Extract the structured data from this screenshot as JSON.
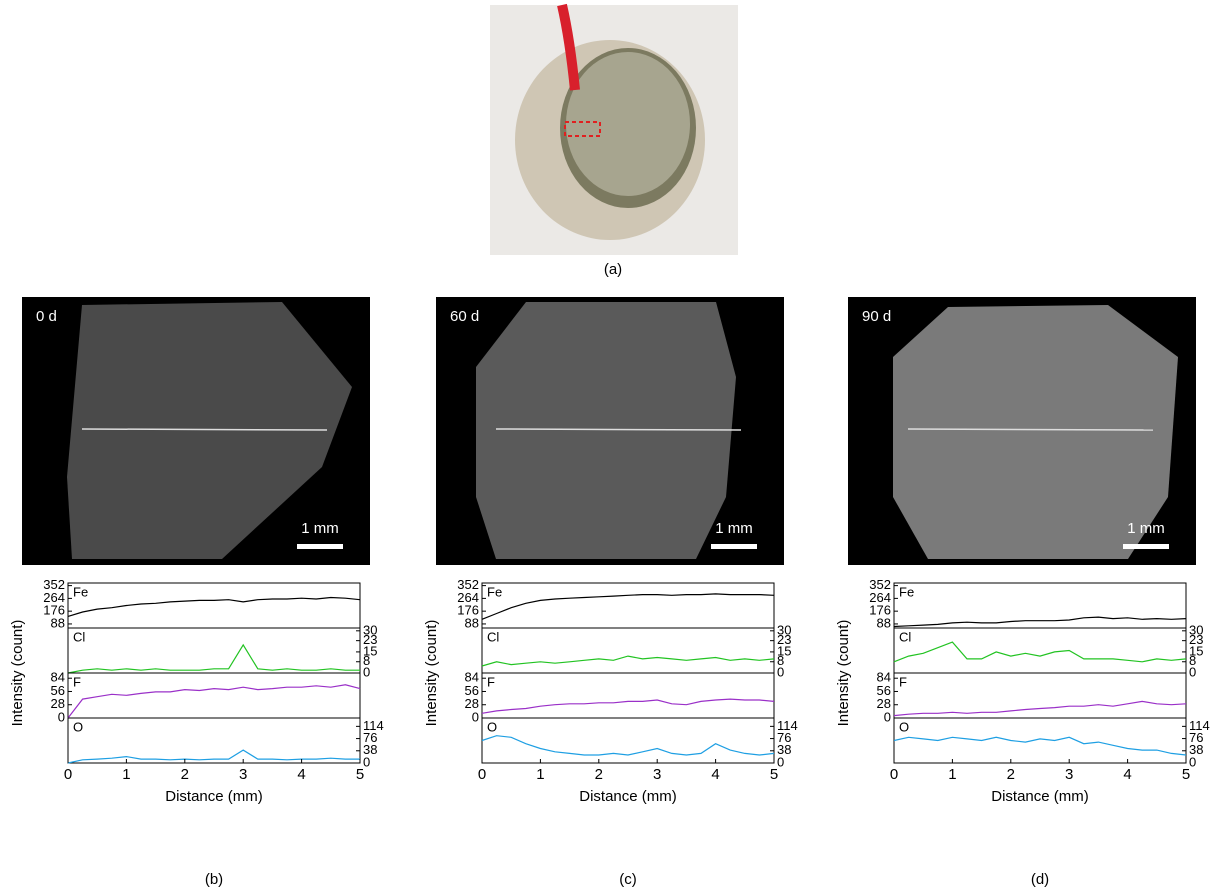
{
  "photo": {
    "label": "(a)"
  },
  "chart_data": [
    {
      "type": "stacked-line",
      "panel_label": "(b)",
      "image_label": "0 d",
      "scale_label": "1 mm",
      "xlabel": "Distance (mm)",
      "ylabel": "Intensity (count)",
      "x": [
        0,
        0.25,
        0.5,
        0.75,
        1,
        1.25,
        1.5,
        1.75,
        2,
        2.25,
        2.5,
        2.75,
        3,
        3.25,
        3.5,
        3.75,
        4,
        4.25,
        4.5,
        4.75,
        5
      ],
      "xlim": [
        0,
        5
      ],
      "xticks": [
        0,
        1,
        2,
        3,
        4,
        5
      ],
      "series": [
        {
          "name": "Fe",
          "color": "#000000",
          "side": "left",
          "ylim": [
            60,
            370
          ],
          "yticks": [
            88,
            176,
            264,
            352
          ],
          "values": [
            140,
            170,
            190,
            200,
            215,
            225,
            230,
            240,
            245,
            250,
            250,
            255,
            240,
            255,
            260,
            260,
            265,
            260,
            270,
            265,
            255
          ]
        },
        {
          "name": "Cl",
          "color": "#22c322",
          "side": "right",
          "ylim": [
            0,
            32
          ],
          "yticks": [
            0,
            8,
            15,
            23,
            30
          ],
          "values": [
            0,
            2,
            3,
            2,
            3,
            2,
            3,
            2,
            2,
            2,
            3,
            3,
            20,
            3,
            2,
            3,
            2,
            2,
            3,
            2,
            2
          ]
        },
        {
          "name": "F",
          "color": "#9a30c8",
          "side": "left",
          "ylim": [
            0,
            95
          ],
          "yticks": [
            0,
            28,
            56,
            84
          ],
          "values": [
            0,
            40,
            45,
            50,
            48,
            52,
            55,
            55,
            60,
            58,
            62,
            60,
            65,
            60,
            62,
            65,
            65,
            68,
            65,
            70,
            62
          ]
        },
        {
          "name": "O",
          "color": "#1e9fe3",
          "side": "right",
          "ylim": [
            0,
            140
          ],
          "yticks": [
            0,
            38,
            76,
            114
          ],
          "values": [
            0,
            10,
            12,
            15,
            20,
            12,
            12,
            10,
            12,
            10,
            12,
            12,
            40,
            12,
            12,
            10,
            12,
            12,
            15,
            12,
            12
          ]
        }
      ]
    },
    {
      "type": "stacked-line",
      "panel_label": "(c)",
      "image_label": "60 d",
      "scale_label": "1 mm",
      "xlabel": "Distance (mm)",
      "ylabel": "Intensity (count)",
      "x": [
        0,
        0.25,
        0.5,
        0.75,
        1,
        1.25,
        1.5,
        1.75,
        2,
        2.25,
        2.5,
        2.75,
        3,
        3.25,
        3.5,
        3.75,
        4,
        4.25,
        4.5,
        4.75,
        5
      ],
      "xlim": [
        0,
        5
      ],
      "xticks": [
        0,
        1,
        2,
        3,
        4,
        5
      ],
      "series": [
        {
          "name": "Fe",
          "color": "#000000",
          "side": "left",
          "ylim": [
            60,
            370
          ],
          "yticks": [
            88,
            176,
            264,
            352
          ],
          "values": [
            120,
            160,
            200,
            230,
            250,
            260,
            265,
            270,
            275,
            280,
            285,
            290,
            290,
            285,
            290,
            290,
            295,
            290,
            290,
            290,
            285
          ]
        },
        {
          "name": "Cl",
          "color": "#22c322",
          "side": "right",
          "ylim": [
            0,
            32
          ],
          "yticks": [
            0,
            8,
            15,
            23,
            30
          ],
          "values": [
            5,
            8,
            6,
            7,
            8,
            7,
            8,
            9,
            10,
            9,
            12,
            10,
            11,
            10,
            9,
            10,
            11,
            9,
            10,
            9,
            10
          ]
        },
        {
          "name": "F",
          "color": "#9a30c8",
          "side": "left",
          "ylim": [
            0,
            95
          ],
          "yticks": [
            0,
            28,
            56,
            84
          ],
          "values": [
            10,
            15,
            18,
            20,
            25,
            28,
            30,
            30,
            32,
            32,
            35,
            35,
            38,
            30,
            28,
            35,
            38,
            40,
            38,
            38,
            35
          ]
        },
        {
          "name": "O",
          "color": "#1e9fe3",
          "side": "right",
          "ylim": [
            0,
            140
          ],
          "yticks": [
            0,
            38,
            76,
            114
          ],
          "values": [
            70,
            85,
            80,
            60,
            45,
            35,
            30,
            25,
            25,
            30,
            25,
            35,
            45,
            30,
            25,
            30,
            60,
            40,
            30,
            25,
            30
          ]
        }
      ]
    },
    {
      "type": "stacked-line",
      "panel_label": "(d)",
      "image_label": "90 d",
      "scale_label": "1 mm",
      "xlabel": "Distance (mm)",
      "ylabel": "Intensity (count)",
      "x": [
        0,
        0.25,
        0.5,
        0.75,
        1,
        1.25,
        1.5,
        1.75,
        2,
        2.25,
        2.5,
        2.75,
        3,
        3.25,
        3.5,
        3.75,
        4,
        4.25,
        4.5,
        4.75,
        5
      ],
      "xlim": [
        0,
        5
      ],
      "xticks": [
        0,
        1,
        2,
        3,
        4,
        5
      ],
      "series": [
        {
          "name": "Fe",
          "color": "#000000",
          "side": "left",
          "ylim": [
            60,
            370
          ],
          "yticks": [
            88,
            176,
            264,
            352
          ],
          "values": [
            70,
            75,
            80,
            85,
            95,
            100,
            95,
            95,
            105,
            110,
            110,
            110,
            115,
            130,
            135,
            125,
            130,
            120,
            125,
            120,
            125
          ]
        },
        {
          "name": "Cl",
          "color": "#22c322",
          "side": "right",
          "ylim": [
            0,
            32
          ],
          "yticks": [
            0,
            8,
            15,
            23,
            30
          ],
          "values": [
            8,
            12,
            14,
            18,
            22,
            10,
            10,
            15,
            12,
            14,
            12,
            15,
            16,
            10,
            10,
            10,
            9,
            8,
            10,
            9,
            10
          ]
        },
        {
          "name": "F",
          "color": "#9a30c8",
          "side": "left",
          "ylim": [
            0,
            95
          ],
          "yticks": [
            0,
            28,
            56,
            84
          ],
          "values": [
            5,
            8,
            10,
            10,
            12,
            10,
            12,
            12,
            15,
            18,
            20,
            22,
            25,
            25,
            28,
            25,
            30,
            35,
            30,
            28,
            30
          ]
        },
        {
          "name": "O",
          "color": "#1e9fe3",
          "side": "right",
          "ylim": [
            0,
            140
          ],
          "yticks": [
            0,
            38,
            76,
            114
          ],
          "values": [
            70,
            80,
            75,
            70,
            80,
            75,
            70,
            80,
            70,
            65,
            75,
            70,
            80,
            60,
            65,
            55,
            45,
            40,
            40,
            30,
            25
          ]
        }
      ]
    }
  ]
}
